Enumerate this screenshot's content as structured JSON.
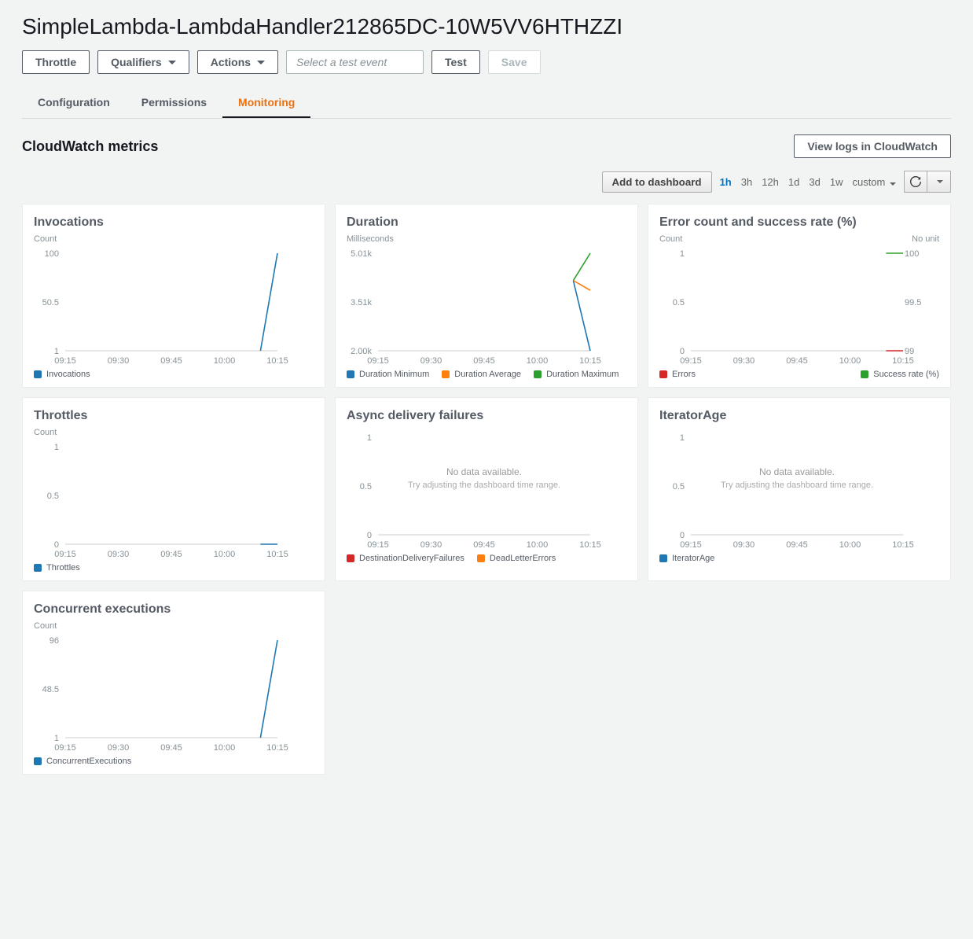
{
  "page": {
    "title": "SimpleLambda-LambdaHandler212865DC-10W5VV6HTHZZI"
  },
  "buttons": {
    "throttle": "Throttle",
    "qualifiers": "Qualifiers",
    "actions": "Actions",
    "test_event_placeholder": "Select a test event",
    "test": "Test",
    "save": "Save"
  },
  "tabs": {
    "configuration": "Configuration",
    "permissions": "Permissions",
    "monitoring": "Monitoring"
  },
  "metrics": {
    "section_title": "CloudWatch metrics",
    "view_logs": "View logs in CloudWatch",
    "add_dashboard": "Add to dashboard",
    "ranges": [
      "1h",
      "3h",
      "12h",
      "1d",
      "3d",
      "1w"
    ],
    "range_active": "1h",
    "custom": "custom",
    "x_ticks": [
      "09:15",
      "09:30",
      "09:45",
      "10:00",
      "10:15"
    ],
    "colors": {
      "blue": "#1f77b4",
      "orange": "#ff7f0e",
      "green": "#2ca02c",
      "red": "#d62728",
      "axis": "#999",
      "grid": "#e0e0e0"
    },
    "nodata": {
      "line1": "No data available.",
      "line2": "Try adjusting the dashboard time range."
    },
    "cards": {
      "invocations": {
        "title": "Invocations",
        "ylabel": "Count",
        "yticks": [
          "100",
          "50.5",
          "1"
        ],
        "legend": [
          {
            "label": "Invocations",
            "color": "#1f77b4"
          }
        ],
        "series": [
          {
            "color": "#1f77b4",
            "points": [
              [
                3.68,
                1.0
              ],
              [
                4.0,
                0.0
              ]
            ]
          }
        ]
      },
      "duration": {
        "title": "Duration",
        "ylabel": "Milliseconds",
        "yticks": [
          "5.01k",
          "3.51k",
          "2.00k"
        ],
        "legend": [
          {
            "label": "Duration Minimum",
            "color": "#1f77b4"
          },
          {
            "label": "Duration Average",
            "color": "#ff7f0e"
          },
          {
            "label": "Duration Maximum",
            "color": "#2ca02c"
          }
        ],
        "series": [
          {
            "color": "#1f77b4",
            "points": [
              [
                3.68,
                0.28
              ],
              [
                4.0,
                1.0
              ]
            ]
          },
          {
            "color": "#ff7f0e",
            "points": [
              [
                3.68,
                0.28
              ],
              [
                4.0,
                0.38
              ]
            ]
          },
          {
            "color": "#2ca02c",
            "points": [
              [
                3.68,
                0.28
              ],
              [
                4.0,
                0.0
              ]
            ]
          }
        ]
      },
      "errors": {
        "title": "Error count and success rate (%)",
        "ylabel": "Count",
        "ylabel2": "No unit",
        "yticks": [
          "1",
          "0.5",
          "0"
        ],
        "yticks2": [
          "100",
          "99.5",
          "99"
        ],
        "legend": [
          {
            "label": "Errors",
            "color": "#d62728"
          },
          {
            "label": "Success rate (%)",
            "color": "#2ca02c"
          }
        ],
        "series": [
          {
            "color": "#2ca02c",
            "points": [
              [
                3.68,
                0.0
              ],
              [
                4.0,
                0.0
              ]
            ]
          },
          {
            "color": "#d62728",
            "points": [
              [
                3.68,
                1.0
              ],
              [
                4.0,
                1.0
              ]
            ]
          }
        ]
      },
      "throttles": {
        "title": "Throttles",
        "ylabel": "Count",
        "yticks": [
          "1",
          "0.5",
          "0"
        ],
        "legend": [
          {
            "label": "Throttles",
            "color": "#1f77b4"
          }
        ],
        "series": [
          {
            "color": "#1f77b4",
            "points": [
              [
                3.68,
                1.0
              ],
              [
                4.0,
                1.0
              ]
            ]
          }
        ]
      },
      "async": {
        "title": "Async delivery failures",
        "yticks": [
          "1",
          "0.5",
          "0"
        ],
        "legend": [
          {
            "label": "DestinationDeliveryFailures",
            "color": "#d62728"
          },
          {
            "label": "DeadLetterErrors",
            "color": "#ff7f0e"
          }
        ],
        "nodata": true
      },
      "iterator": {
        "title": "IteratorAge",
        "yticks": [
          "1",
          "0.5",
          "0"
        ],
        "legend": [
          {
            "label": "IteratorAge",
            "color": "#1f77b4"
          }
        ],
        "nodata": true
      },
      "concurrent": {
        "title": "Concurrent executions",
        "ylabel": "Count",
        "yticks": [
          "96",
          "48.5",
          "1"
        ],
        "legend": [
          {
            "label": "ConcurrentExecutions",
            "color": "#1f77b4"
          }
        ],
        "series": [
          {
            "color": "#1f77b4",
            "points": [
              [
                3.68,
                1.0
              ],
              [
                4.0,
                0.0
              ]
            ]
          }
        ]
      }
    }
  }
}
